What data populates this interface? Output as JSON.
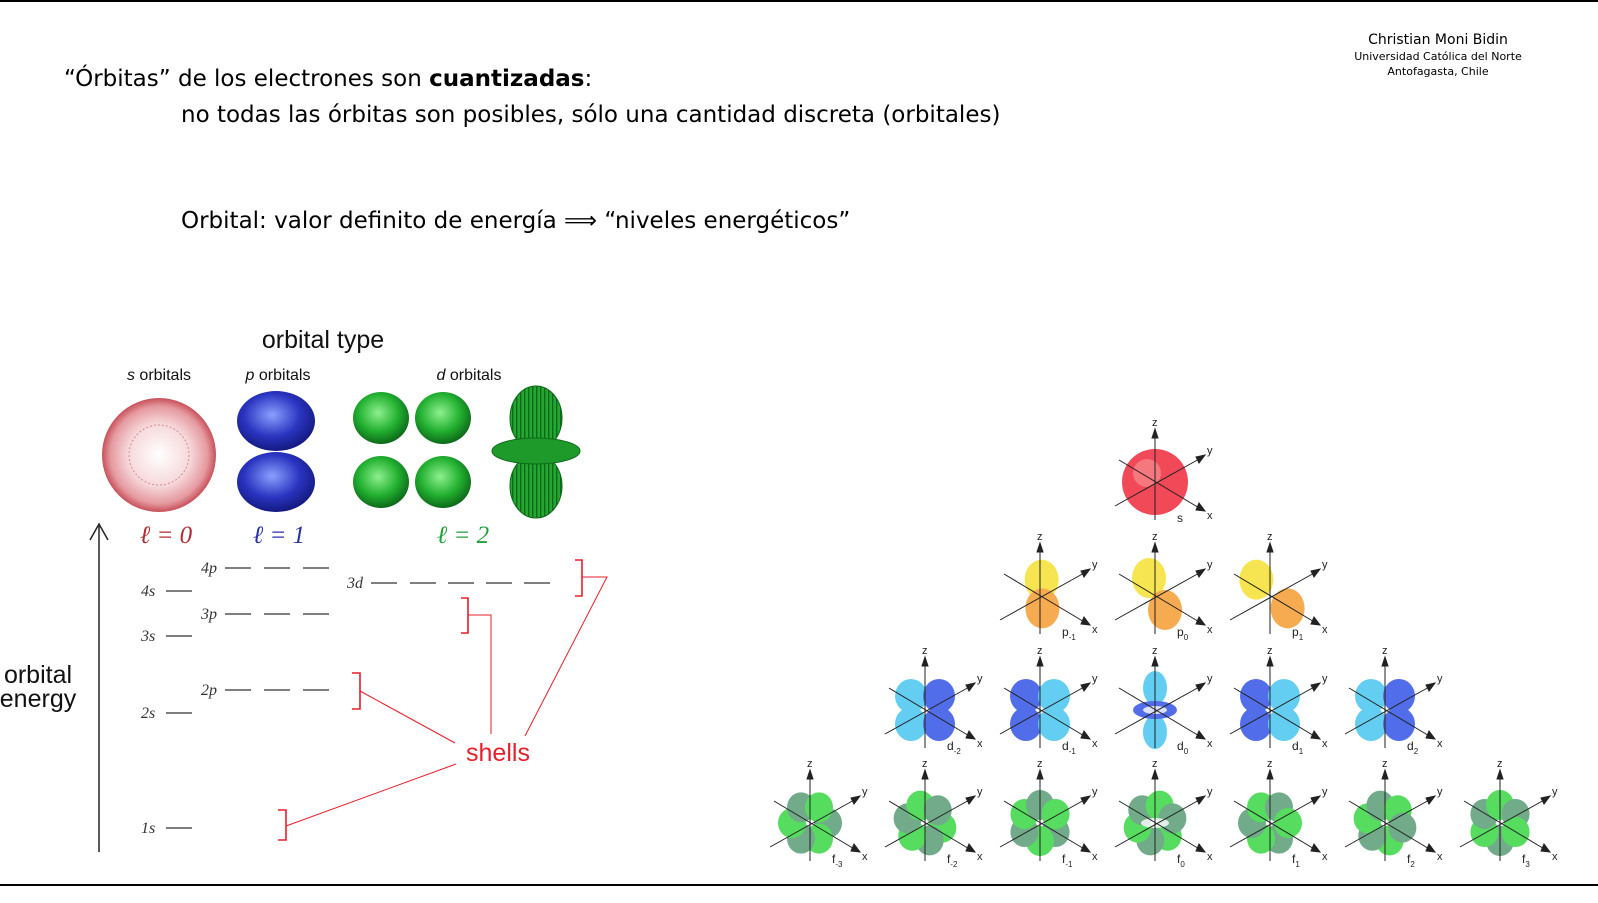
{
  "author": {
    "name": "Christian Moni Bidin",
    "university": "Universidad Católica del Norte",
    "location": "Antofagasta, Chile"
  },
  "text": {
    "line1_pre": "“Órbitas” de los electrones son ",
    "line1_bold": "cuantizadas",
    "line1_post": ":",
    "line2": "no todas las órbitas son posibles, sólo una cantidad discreta (orbitales)",
    "line3": "Orbital: valor definito de energía ⟹ “niveles energéticos”"
  },
  "left_figure": {
    "title": "orbital type",
    "types": [
      {
        "letter": "s",
        "word": " orbitals",
        "l": "ℓ = 0",
        "color": "#b22a32"
      },
      {
        "letter": "p",
        "word": " orbitals",
        "l": "ℓ = 1",
        "color": "#2830a8"
      },
      {
        "letter": "d",
        "word": " orbitals",
        "l": "ℓ = 2",
        "color": "#22a03a"
      }
    ],
    "axis_label": [
      "orbital",
      "energy"
    ],
    "levels": [
      "4s",
      "3s",
      "2s",
      "1s",
      "4p",
      "3p",
      "2p",
      "3d"
    ],
    "shells_label": "shells",
    "shells_color": "#e81f2b"
  },
  "right_figure": {
    "axis_labels": {
      "z": "z",
      "y": "y",
      "x": "x"
    },
    "rows": [
      {
        "family": "s",
        "items": [
          {
            "letter": "s",
            "sub": ""
          }
        ],
        "colors": [
          "#f03040",
          "#f58a8a"
        ]
      },
      {
        "family": "p",
        "items": [
          {
            "letter": "p",
            "sub": "-1"
          },
          {
            "letter": "p",
            "sub": "0"
          },
          {
            "letter": "p",
            "sub": "1"
          }
        ],
        "colors": [
          "#f5e23a",
          "#f5a03a"
        ]
      },
      {
        "family": "d",
        "items": [
          {
            "letter": "d",
            "sub": "-2"
          },
          {
            "letter": "d",
            "sub": "-1"
          },
          {
            "letter": "d",
            "sub": "0"
          },
          {
            "letter": "d",
            "sub": "1"
          },
          {
            "letter": "d",
            "sub": "2"
          }
        ],
        "colors": [
          "#3a5ae6",
          "#4ec8f0"
        ]
      },
      {
        "family": "f",
        "items": [
          {
            "letter": "f",
            "sub": "-3"
          },
          {
            "letter": "f",
            "sub": "-2"
          },
          {
            "letter": "f",
            "sub": "-1"
          },
          {
            "letter": "f",
            "sub": "0"
          },
          {
            "letter": "f",
            "sub": "1"
          },
          {
            "letter": "f",
            "sub": "2"
          },
          {
            "letter": "f",
            "sub": "3"
          }
        ],
        "colors": [
          "#3fd84a",
          "#5fa07a"
        ]
      }
    ]
  }
}
